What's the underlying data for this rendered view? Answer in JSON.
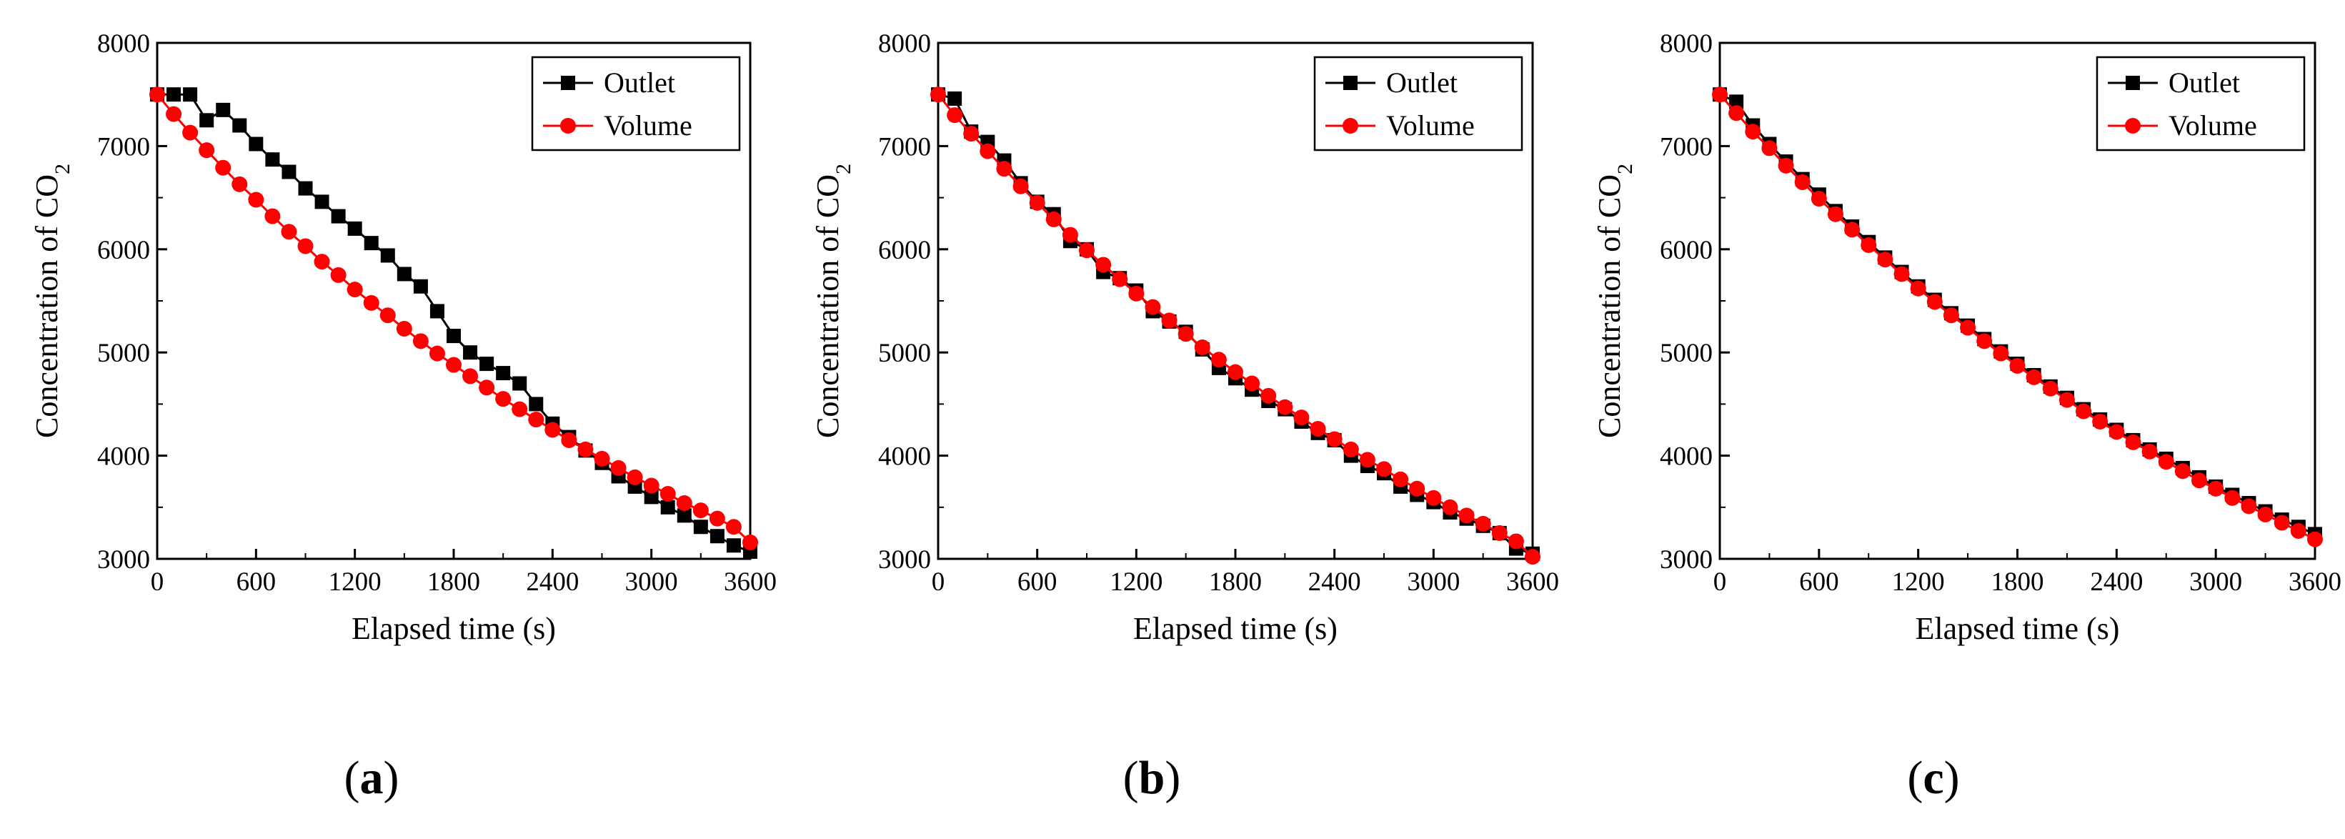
{
  "figure": {
    "panel_labels": [
      {
        "open": "(",
        "letter": "a",
        "close": ")"
      },
      {
        "open": "(",
        "letter": "b",
        "close": ")"
      },
      {
        "open": "(",
        "letter": "c",
        "close": ")"
      }
    ]
  },
  "colors": {
    "outlet": "#000000",
    "volume": "#ff0000",
    "axis": "#000000",
    "background": "#ffffff"
  },
  "chart_data": [
    {
      "type": "line",
      "panel": "a",
      "xlabel": "Elapsed time (s)",
      "ylabel": {
        "main": "Concentration of CO",
        "subscript": "2"
      },
      "xlim": [
        0,
        3600
      ],
      "ylim": [
        3000,
        8000
      ],
      "xticks": [
        0,
        600,
        1200,
        1800,
        2400,
        3000,
        3600
      ],
      "yticks": [
        3000,
        4000,
        5000,
        6000,
        7000,
        8000
      ],
      "legend": {
        "position": "top-right",
        "entries": [
          "Outlet",
          "Volume"
        ]
      },
      "series": [
        {
          "name": "Outlet",
          "marker": "square",
          "color": "#000000",
          "x": [
            0,
            100,
            200,
            300,
            400,
            500,
            600,
            700,
            800,
            900,
            1000,
            1100,
            1200,
            1300,
            1400,
            1500,
            1600,
            1700,
            1800,
            1900,
            2000,
            2100,
            2200,
            2300,
            2400,
            2500,
            2600,
            2700,
            2800,
            2900,
            3000,
            3100,
            3200,
            3300,
            3400,
            3500,
            3600
          ],
          "y": [
            7500,
            7500,
            7500,
            7250,
            7350,
            7200,
            7020,
            6870,
            6750,
            6590,
            6460,
            6320,
            6200,
            6060,
            5940,
            5760,
            5640,
            5400,
            5160,
            5000,
            4890,
            4800,
            4700,
            4500,
            4310,
            4180,
            4050,
            3930,
            3800,
            3700,
            3600,
            3500,
            3420,
            3310,
            3220,
            3130,
            3070
          ]
        },
        {
          "name": "Volume",
          "marker": "circle",
          "color": "#ff0000",
          "x": [
            0,
            100,
            200,
            300,
            400,
            500,
            600,
            700,
            800,
            900,
            1000,
            1100,
            1200,
            1300,
            1400,
            1500,
            1600,
            1700,
            1800,
            1900,
            2000,
            2100,
            2200,
            2300,
            2400,
            2500,
            2600,
            2700,
            2800,
            2900,
            3000,
            3100,
            3200,
            3300,
            3400,
            3500,
            3600
          ],
          "y": [
            7500,
            7310,
            7130,
            6960,
            6790,
            6630,
            6480,
            6320,
            6170,
            6030,
            5880,
            5750,
            5610,
            5480,
            5360,
            5230,
            5110,
            4990,
            4880,
            4770,
            4660,
            4550,
            4450,
            4350,
            4250,
            4150,
            4060,
            3970,
            3880,
            3790,
            3710,
            3630,
            3540,
            3470,
            3390,
            3310,
            3160
          ]
        }
      ]
    },
    {
      "type": "line",
      "panel": "b",
      "xlabel": "Elapsed time (s)",
      "ylabel": {
        "main": "Concentration of CO",
        "subscript": "2"
      },
      "xlim": [
        0,
        3600
      ],
      "ylim": [
        3000,
        8000
      ],
      "xticks": [
        0,
        600,
        1200,
        1800,
        2400,
        3000,
        3600
      ],
      "yticks": [
        3000,
        4000,
        5000,
        6000,
        7000,
        8000
      ],
      "legend": {
        "position": "top-right",
        "entries": [
          "Outlet",
          "Volume"
        ]
      },
      "series": [
        {
          "name": "Outlet",
          "marker": "square",
          "color": "#000000",
          "x": [
            0,
            100,
            200,
            300,
            400,
            500,
            600,
            700,
            800,
            900,
            1000,
            1100,
            1200,
            1300,
            1400,
            1500,
            1600,
            1700,
            1800,
            1900,
            2000,
            2100,
            2200,
            2300,
            2400,
            2500,
            2600,
            2700,
            2800,
            2900,
            3000,
            3100,
            3200,
            3300,
            3400,
            3500,
            3600
          ],
          "y": [
            7500,
            7460,
            7140,
            7040,
            6860,
            6640,
            6460,
            6340,
            6080,
            6000,
            5780,
            5720,
            5600,
            5400,
            5300,
            5200,
            5030,
            4850,
            4750,
            4640,
            4530,
            4450,
            4330,
            4220,
            4150,
            4000,
            3900,
            3830,
            3700,
            3620,
            3550,
            3450,
            3390,
            3320,
            3250,
            3100,
            3050
          ]
        },
        {
          "name": "Volume",
          "marker": "circle",
          "color": "#ff0000",
          "x": [
            0,
            100,
            200,
            300,
            400,
            500,
            600,
            700,
            800,
            900,
            1000,
            1100,
            1200,
            1300,
            1400,
            1500,
            1600,
            1700,
            1800,
            1900,
            2000,
            2100,
            2200,
            2300,
            2400,
            2500,
            2600,
            2700,
            2800,
            2900,
            3000,
            3100,
            3200,
            3300,
            3400,
            3500,
            3600
          ],
          "y": [
            7500,
            7300,
            7120,
            6950,
            6780,
            6610,
            6450,
            6290,
            6140,
            5990,
            5850,
            5710,
            5570,
            5440,
            5310,
            5180,
            5050,
            4930,
            4810,
            4700,
            4580,
            4470,
            4370,
            4260,
            4160,
            4060,
            3960,
            3870,
            3770,
            3680,
            3590,
            3500,
            3420,
            3340,
            3250,
            3170,
            3020
          ]
        }
      ]
    },
    {
      "type": "line",
      "panel": "c",
      "xlabel": "Elapsed time (s)",
      "ylabel": {
        "main": "Concentration of CO",
        "subscript": "2"
      },
      "xlim": [
        0,
        3600
      ],
      "ylim": [
        3000,
        8000
      ],
      "xticks": [
        0,
        600,
        1200,
        1800,
        2400,
        3000,
        3600
      ],
      "yticks": [
        3000,
        4000,
        5000,
        6000,
        7000,
        8000
      ],
      "legend": {
        "position": "top-right",
        "entries": [
          "Outlet",
          "Volume"
        ]
      },
      "series": [
        {
          "name": "Outlet",
          "marker": "square",
          "color": "#000000",
          "x": [
            0,
            100,
            200,
            300,
            400,
            500,
            600,
            700,
            800,
            900,
            1000,
            1100,
            1200,
            1300,
            1400,
            1500,
            1600,
            1700,
            1800,
            1900,
            2000,
            2100,
            2200,
            2300,
            2400,
            2500,
            2600,
            2700,
            2800,
            2900,
            3000,
            3100,
            3200,
            3300,
            3400,
            3500,
            3600
          ],
          "y": [
            7500,
            7430,
            7200,
            7020,
            6850,
            6680,
            6530,
            6370,
            6220,
            6070,
            5920,
            5780,
            5640,
            5510,
            5380,
            5260,
            5130,
            5010,
            4890,
            4780,
            4670,
            4560,
            4450,
            4350,
            4250,
            4150,
            4060,
            3970,
            3880,
            3790,
            3700,
            3620,
            3540,
            3460,
            3380,
            3310,
            3240
          ]
        },
        {
          "name": "Volume",
          "marker": "circle",
          "color": "#ff0000",
          "x": [
            0,
            100,
            200,
            300,
            400,
            500,
            600,
            700,
            800,
            900,
            1000,
            1100,
            1200,
            1300,
            1400,
            1500,
            1600,
            1700,
            1800,
            1900,
            2000,
            2100,
            2200,
            2300,
            2400,
            2500,
            2600,
            2700,
            2800,
            2900,
            3000,
            3100,
            3200,
            3300,
            3400,
            3500,
            3600
          ],
          "y": [
            7500,
            7320,
            7140,
            6980,
            6810,
            6650,
            6490,
            6340,
            6190,
            6040,
            5900,
            5760,
            5620,
            5490,
            5360,
            5240,
            5110,
            4990,
            4870,
            4760,
            4650,
            4540,
            4430,
            4330,
            4230,
            4130,
            4040,
            3940,
            3850,
            3760,
            3680,
            3590,
            3510,
            3430,
            3350,
            3270,
            3190
          ]
        }
      ]
    }
  ]
}
